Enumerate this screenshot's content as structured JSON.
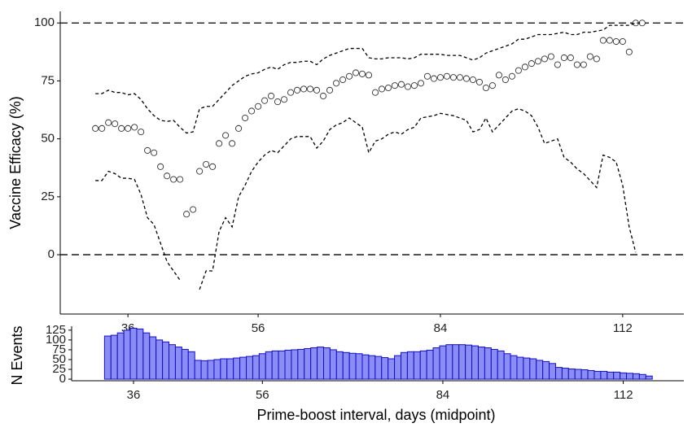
{
  "chart_data": [
    {
      "type": "scatter",
      "ylabel": "Vaccine Efficacy (%)",
      "xlim": [
        25.6,
        121.4
      ],
      "ylim": [
        -25.6,
        105
      ],
      "xticks": [
        36,
        56,
        84,
        112
      ],
      "yticks": [
        0,
        25,
        50,
        75,
        100
      ],
      "hlines": [
        0,
        100
      ],
      "x": [
        31,
        32,
        33,
        34,
        35,
        36,
        37,
        38,
        39,
        40,
        41,
        42,
        43,
        44,
        45,
        46,
        47,
        48,
        49,
        50,
        51,
        52,
        53,
        54,
        55,
        56,
        57,
        58,
        59,
        60,
        61,
        62,
        63,
        64,
        65,
        66,
        67,
        68,
        69,
        70,
        71,
        72,
        73,
        74,
        75,
        76,
        77,
        78,
        79,
        80,
        81,
        82,
        83,
        84,
        85,
        86,
        87,
        88,
        89,
        90,
        91,
        92,
        93,
        94,
        95,
        96,
        97,
        98,
        99,
        100,
        101,
        102,
        103,
        104,
        105,
        106,
        107,
        108,
        109,
        110,
        111,
        112,
        113,
        114,
        115
      ],
      "series": [
        {
          "style": "points",
          "color": "#333333",
          "values": [
            54.5,
            54.5,
            57,
            56.5,
            54.5,
            54.5,
            55,
            53,
            45,
            44,
            38,
            34,
            32.5,
            32.5,
            17.5,
            19.5,
            36,
            39,
            38,
            48,
            51.5,
            48,
            54.5,
            59,
            62,
            64,
            66.5,
            68.5,
            66,
            67,
            70,
            71,
            71.5,
            71.5,
            71,
            68.5,
            71,
            74,
            75.5,
            77,
            78.5,
            78,
            77.5,
            70,
            71.5,
            72,
            73,
            73.5,
            72.5,
            73,
            74,
            77,
            76,
            76.5,
            77,
            76.5,
            76.5,
            76,
            75.5,
            74.5,
            72,
            73,
            77.5,
            75.5,
            77,
            79.5,
            81,
            82.5,
            83.5,
            84.5,
            85.5,
            82,
            85,
            85,
            82,
            82,
            85.5,
            84.5,
            92.5,
            92.5,
            92,
            92,
            87.5,
            100,
            100
          ]
        },
        {
          "style": "dashed",
          "color": "#000000",
          "values": [
            69.5,
            69.5,
            71,
            70,
            70,
            69,
            69.5,
            67,
            63,
            60,
            58,
            57.5,
            58,
            55,
            52.5,
            53,
            63,
            64,
            64,
            67,
            70,
            73,
            75,
            77,
            78,
            78.5,
            80,
            81,
            80,
            82,
            83,
            83,
            83.5,
            83.5,
            82,
            84.5,
            86,
            87,
            88,
            89,
            89,
            89,
            85,
            84.5,
            84.5,
            85,
            85,
            85,
            84.5,
            85,
            86.5,
            86.5,
            86.5,
            86.5,
            86,
            86,
            86,
            85,
            84,
            85,
            87,
            88,
            89,
            90,
            91,
            93,
            93,
            94,
            95,
            95,
            95,
            95.5,
            96,
            95,
            95,
            96,
            96,
            96.5,
            97,
            99,
            99,
            99,
            99,
            100,
            100
          ]
        },
        {
          "style": "dashed",
          "color": "#000000",
          "values": [
            32,
            32,
            36,
            35,
            33,
            33,
            32.5,
            26,
            16,
            13,
            5,
            -3,
            -7,
            -11,
            null,
            null,
            -15,
            -7,
            -7,
            10,
            16,
            12,
            25,
            30,
            36,
            40,
            43,
            45,
            44,
            47,
            50,
            51,
            51,
            51,
            46,
            49,
            54,
            56,
            57,
            59,
            57,
            55,
            44,
            49,
            50,
            52,
            53,
            52,
            54,
            55,
            59,
            59.5,
            60,
            61,
            60.5,
            60,
            59,
            58,
            53,
            54,
            59,
            53,
            56,
            59,
            62,
            63,
            62,
            60,
            55,
            48,
            49,
            50,
            42,
            40,
            37,
            35,
            32,
            29,
            43,
            42,
            40,
            30,
            12,
            1,
            null
          ]
        }
      ]
    },
    {
      "type": "bar",
      "xlabel": "Prime-boost interval, days (midpoint)",
      "ylabel": "N Events",
      "xlim": [
        26.4,
        121.4
      ],
      "ylim": [
        -4,
        135
      ],
      "xticks": [
        36,
        56,
        84,
        112
      ],
      "yticks": [
        0,
        25,
        50,
        75,
        100,
        125
      ],
      "color": "#8c8cf5",
      "edgecolor": "#1010c8",
      "x": [
        32,
        33,
        34,
        35,
        36,
        37,
        38,
        39,
        40,
        41,
        42,
        43,
        44,
        45,
        46,
        47,
        48,
        49,
        50,
        51,
        52,
        53,
        54,
        55,
        56,
        57,
        58,
        59,
        60,
        61,
        62,
        63,
        64,
        65,
        66,
        67,
        68,
        69,
        70,
        71,
        72,
        73,
        74,
        75,
        76,
        77,
        78,
        79,
        80,
        81,
        82,
        83,
        84,
        85,
        86,
        87,
        88,
        89,
        90,
        91,
        92,
        93,
        94,
        95,
        96,
        97,
        98,
        99,
        100,
        101,
        102,
        103,
        104,
        105,
        106,
        107,
        108,
        109,
        110,
        111,
        112,
        113,
        114,
        115,
        116
      ],
      "values": [
        110,
        112,
        118,
        125,
        130,
        128,
        118,
        108,
        100,
        95,
        88,
        82,
        76,
        70,
        48,
        47,
        48,
        50,
        52,
        52,
        54,
        56,
        58,
        60,
        65,
        70,
        72,
        72,
        74,
        75,
        76,
        78,
        80,
        82,
        80,
        75,
        70,
        68,
        66,
        65,
        62,
        60,
        58,
        55,
        52,
        60,
        68,
        70,
        70,
        72,
        74,
        80,
        85,
        88,
        88,
        88,
        87,
        85,
        82,
        80,
        76,
        72,
        65,
        60,
        56,
        54,
        52,
        48,
        45,
        40,
        30,
        28,
        26,
        25,
        24,
        22,
        20,
        20,
        18,
        18,
        16,
        15,
        14,
        12,
        8
      ]
    }
  ]
}
